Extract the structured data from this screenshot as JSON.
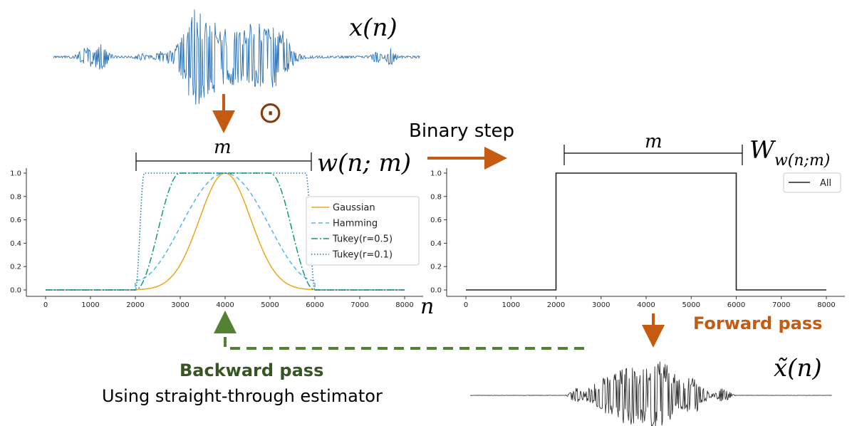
{
  "symbols": {
    "x_n": "x(n)",
    "hadamard": "⊙",
    "w_nm": "w(n; m)",
    "W_main": "W",
    "W_sub": "w(n;m)",
    "m_left": "m",
    "m_right": "m",
    "n_axis": "n",
    "x_tilde_n": "x̃(n)"
  },
  "labels": {
    "binary_step": "Binary step",
    "forward_pass": "Forward pass",
    "backward_pass": "Backward pass",
    "ste": "Using straight-through estimator"
  },
  "colors": {
    "forward_arrow": "#c55a11",
    "backward_arrow": "#548235",
    "forward_text": "#c55a11",
    "backward_text": "#375623",
    "signal_input": "#2e75b6",
    "signal_output": "#333333",
    "circle_dot": "#843c0c"
  },
  "chart_data": [
    {
      "type": "line",
      "xlim": [
        0,
        8000
      ],
      "ylim": [
        0,
        1.0
      ],
      "x_ticks": [
        "0",
        "1000",
        "2000",
        "3000",
        "4000",
        "5000",
        "6000",
        "7000",
        "8000"
      ],
      "y_ticks": [
        "0.0",
        "0.2",
        "0.4",
        "0.6",
        "0.8",
        "1.0"
      ],
      "legend_position": "right",
      "window_start": 2000,
      "window_end": 6000,
      "series": [
        {
          "name": "Gaussian",
          "color": "#e8a71c",
          "style": "solid"
        },
        {
          "name": "Hamming",
          "color": "#56b4e9",
          "style": "dashed"
        },
        {
          "name": "Tukey(r=0.5)",
          "color": "#109a77",
          "style": "dashdot",
          "r": 0.5
        },
        {
          "name": "Tukey(r=0.1)",
          "color": "#1f77b4",
          "style": "dotted",
          "r": 0.1
        }
      ]
    },
    {
      "type": "line",
      "xlim": [
        0,
        8000
      ],
      "ylim": [
        0,
        1.0
      ],
      "x_ticks": [
        "0",
        "1000",
        "2000",
        "3000",
        "4000",
        "5000",
        "6000",
        "7000",
        "8000"
      ],
      "y_ticks": [
        "0.0",
        "0.2",
        "0.4",
        "0.6",
        "0.8",
        "1.0"
      ],
      "legend_position": "upper-right",
      "series": [
        {
          "name": "All",
          "color": "#222222",
          "style": "solid",
          "x": [
            0,
            2000,
            2000,
            6000,
            6000,
            8000
          ],
          "y": [
            0,
            0,
            1,
            1,
            0,
            0
          ]
        }
      ]
    }
  ]
}
